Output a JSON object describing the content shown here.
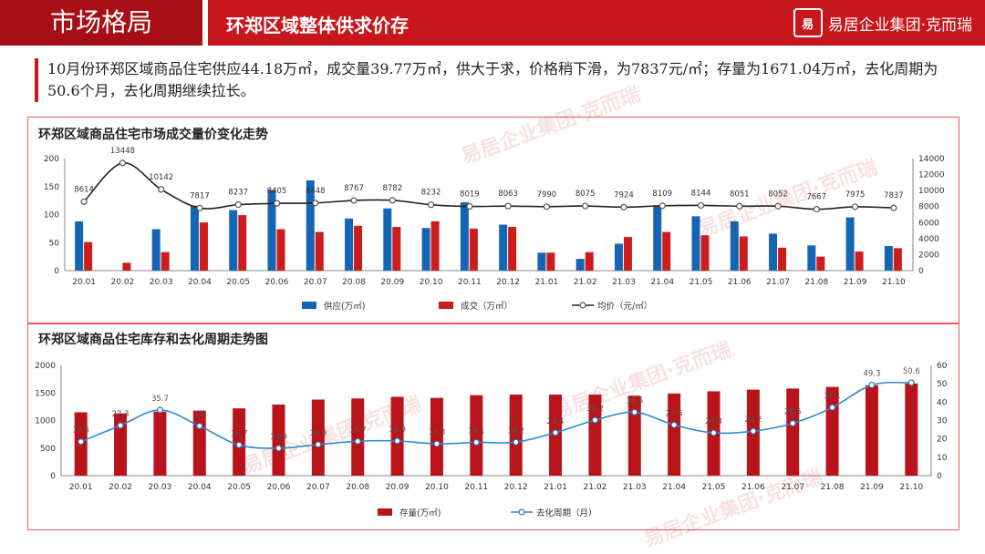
{
  "header": {
    "section": "市场格局",
    "subtitle": "环郑区域整体供求价存",
    "logo_mark": "易",
    "logo_text": "易居企业集团·克而瑞"
  },
  "summary": "10月份环郑区域商品住宅供应44.18万㎡，成交量39.77万㎡，供大于求，价格稍下滑，为7837元/㎡；存量为1671.04万㎡，去化周期为50.6个月，去化周期继续拉长。",
  "watermark_text": "易居企业集团·克而瑞",
  "colors": {
    "supply": "#1565b5",
    "deal": "#cc1d1d",
    "price": "#222222",
    "stock": "#b8141a",
    "cycle": "#2a8ad0"
  },
  "chart_data": [
    {
      "type": "bar",
      "title": "环郑区域商品住宅市场成交量价变化走势",
      "categories": [
        "20.01",
        "20.02",
        "20.03",
        "20.04",
        "20.05",
        "20.06",
        "20.07",
        "20.08",
        "20.09",
        "20.10",
        "20.11",
        "20.12",
        "21.01",
        "21.02",
        "21.03",
        "21.04",
        "21.05",
        "21.06",
        "21.07",
        "21.08",
        "21.09",
        "21.10"
      ],
      "series": [
        {
          "name": "供应(万㎡)",
          "type": "bar",
          "axis": "left",
          "values": [
            88,
            0,
            74,
            116,
            108,
            144,
            161,
            93,
            111,
            76,
            122,
            82,
            32,
            21,
            48,
            116,
            97,
            88,
            66,
            45,
            95,
            44
          ]
        },
        {
          "name": "成交（万㎡）",
          "type": "bar",
          "axis": "left",
          "values": [
            51,
            14,
            33,
            86,
            99,
            74,
            69,
            80,
            78,
            88,
            75,
            78,
            32,
            33,
            60,
            69,
            63,
            61,
            41,
            25,
            34,
            40
          ]
        },
        {
          "name": "均价（元/㎡）",
          "type": "line",
          "axis": "right",
          "values": [
            8614,
            13448,
            10142,
            7817,
            8237,
            8405,
            8448,
            8767,
            8782,
            8232,
            8019,
            8063,
            7990,
            8075,
            7924,
            8109,
            8144,
            8051,
            8052,
            7667,
            7975,
            7837
          ]
        }
      ],
      "ylim_left": [
        0,
        200
      ],
      "yticks_left": [
        "0",
        "50",
        "100",
        "150",
        "200"
      ],
      "ylim_right": [
        0,
        14000
      ],
      "yticks_right": [
        "0",
        "2000",
        "4000",
        "6000",
        "8000",
        "10000",
        "12000",
        "14000"
      ],
      "legend_position": "bottom"
    },
    {
      "type": "bar",
      "title": "环郑区域商品住宅库存和去化周期走势图",
      "categories": [
        "20.01",
        "20.02",
        "20.03",
        "20.04",
        "20.05",
        "20.06",
        "20.07",
        "20.08",
        "20.09",
        "20.10",
        "20.11",
        "20.12",
        "21.01",
        "21.02",
        "21.03",
        "21.04",
        "21.05",
        "21.06",
        "21.07",
        "21.08",
        "21.09",
        "21.10"
      ],
      "series": [
        {
          "name": "存量(万㎡)",
          "type": "bar",
          "axis": "left",
          "values": [
            1150,
            1130,
            1160,
            1180,
            1220,
            1290,
            1380,
            1400,
            1430,
            1410,
            1460,
            1470,
            1470,
            1470,
            1450,
            1490,
            1530,
            1560,
            1580,
            1610,
            1640,
            1671.04
          ]
        },
        {
          "name": "去化周期（月）",
          "type": "line",
          "axis": "right",
          "values": [
            18.5,
            27.3,
            35.7,
            27.0,
            16.7,
            14.9,
            16.9,
            18.7,
            18.9,
            17.3,
            18.1,
            18.2,
            23.4,
            30.2,
            34.5,
            27.6,
            23.3,
            24.2,
            28.5,
            37.1,
            49.3,
            50.6
          ]
        }
      ],
      "ylim_left": [
        0,
        2000
      ],
      "yticks_left": [
        "0",
        "500",
        "1000",
        "1500",
        "2000"
      ],
      "ylim_right": [
        0,
        60
      ],
      "yticks_right": [
        "0",
        "10",
        "20",
        "30",
        "40",
        "50",
        "60"
      ],
      "legend_position": "bottom"
    }
  ]
}
